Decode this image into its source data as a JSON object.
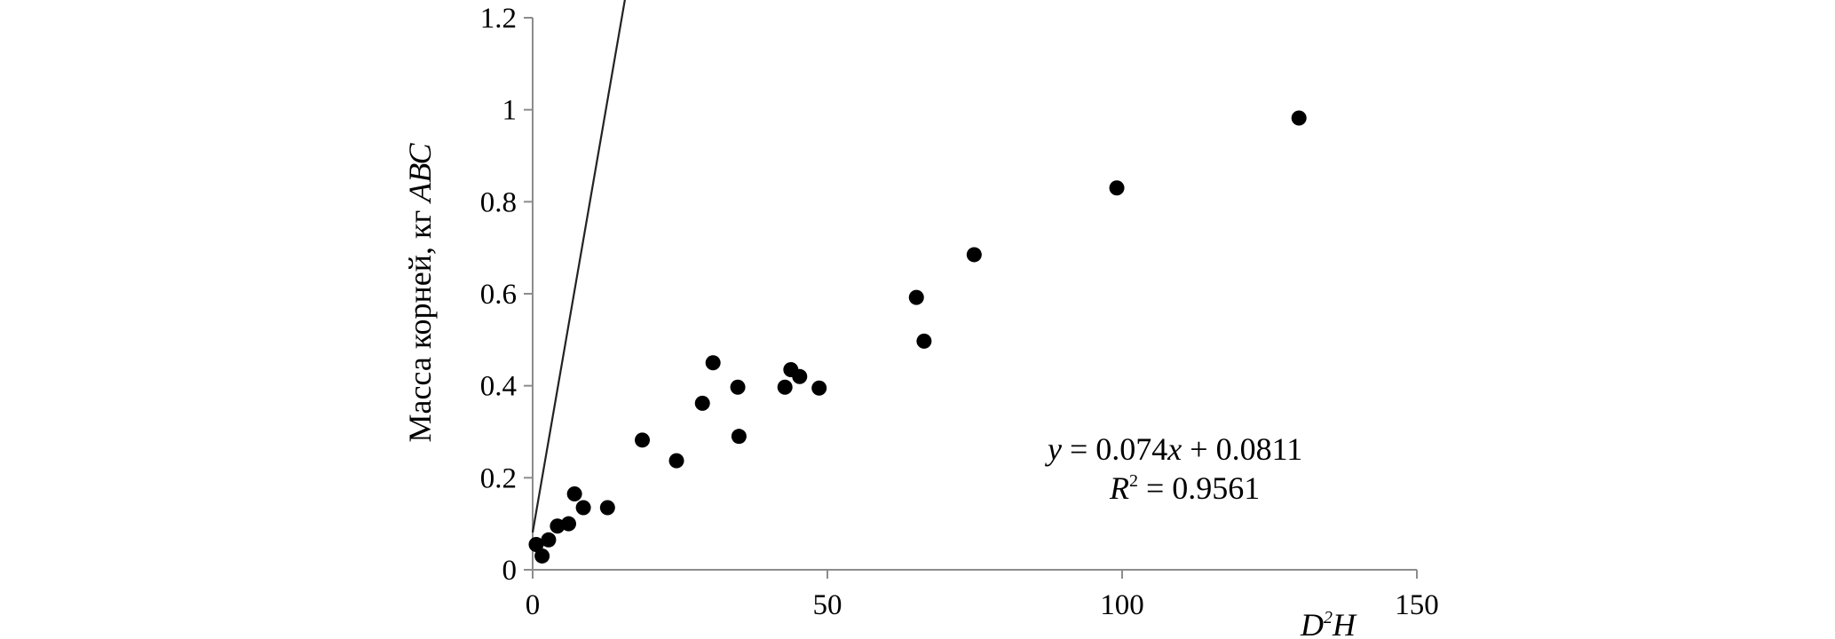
{
  "chart_data": {
    "type": "scatter",
    "title": "",
    "xlabel": {
      "main": "D",
      "sup": "2",
      "tail": "H"
    },
    "ylabel": {
      "main": "Масса корней, кг ",
      "italic": "АВС"
    },
    "xlim": [
      0,
      150
    ],
    "ylim": [
      0,
      1.2
    ],
    "xticks": [
      0,
      50,
      100,
      150
    ],
    "yticks": [
      0,
      0.2,
      0.4,
      0.6,
      0.8,
      1.0,
      1.2
    ],
    "xtick_labels": [
      "0",
      "50",
      "100",
      "150"
    ],
    "ytick_labels": [
      "0",
      "0.2",
      "0.4",
      "0.6",
      "0.8",
      "1",
      "1.2"
    ],
    "grid": false,
    "points": [
      {
        "x": 0.6,
        "y": 0.055
      },
      {
        "x": 1.6,
        "y": 0.03
      },
      {
        "x": 2.7,
        "y": 0.065
      },
      {
        "x": 4.2,
        "y": 0.095
      },
      {
        "x": 6.1,
        "y": 0.1
      },
      {
        "x": 7.1,
        "y": 0.165
      },
      {
        "x": 8.6,
        "y": 0.135
      },
      {
        "x": 12.7,
        "y": 0.135
      },
      {
        "x": 18.6,
        "y": 0.282
      },
      {
        "x": 24.4,
        "y": 0.237
      },
      {
        "x": 28.8,
        "y": 0.362
      },
      {
        "x": 30.6,
        "y": 0.45
      },
      {
        "x": 34.8,
        "y": 0.397
      },
      {
        "x": 35.0,
        "y": 0.29
      },
      {
        "x": 42.8,
        "y": 0.397
      },
      {
        "x": 43.8,
        "y": 0.435
      },
      {
        "x": 45.3,
        "y": 0.42
      },
      {
        "x": 48.6,
        "y": 0.395
      },
      {
        "x": 65.1,
        "y": 0.592
      },
      {
        "x": 66.4,
        "y": 0.497
      },
      {
        "x": 74.9,
        "y": 0.685
      },
      {
        "x": 99.1,
        "y": 0.83
      },
      {
        "x": 130.0,
        "y": 0.982
      }
    ],
    "trendline": {
      "slope": 0.074,
      "intercept": 0.0811,
      "x_range": [
        0,
        130
      ]
    },
    "equation": {
      "y_var": "y",
      "middle": " = 0.074",
      "x_var": "x",
      "tail": " + 0.0811"
    },
    "r_squared": {
      "var": "R",
      "sup": "2",
      "tail": " = 0.9561"
    }
  }
}
